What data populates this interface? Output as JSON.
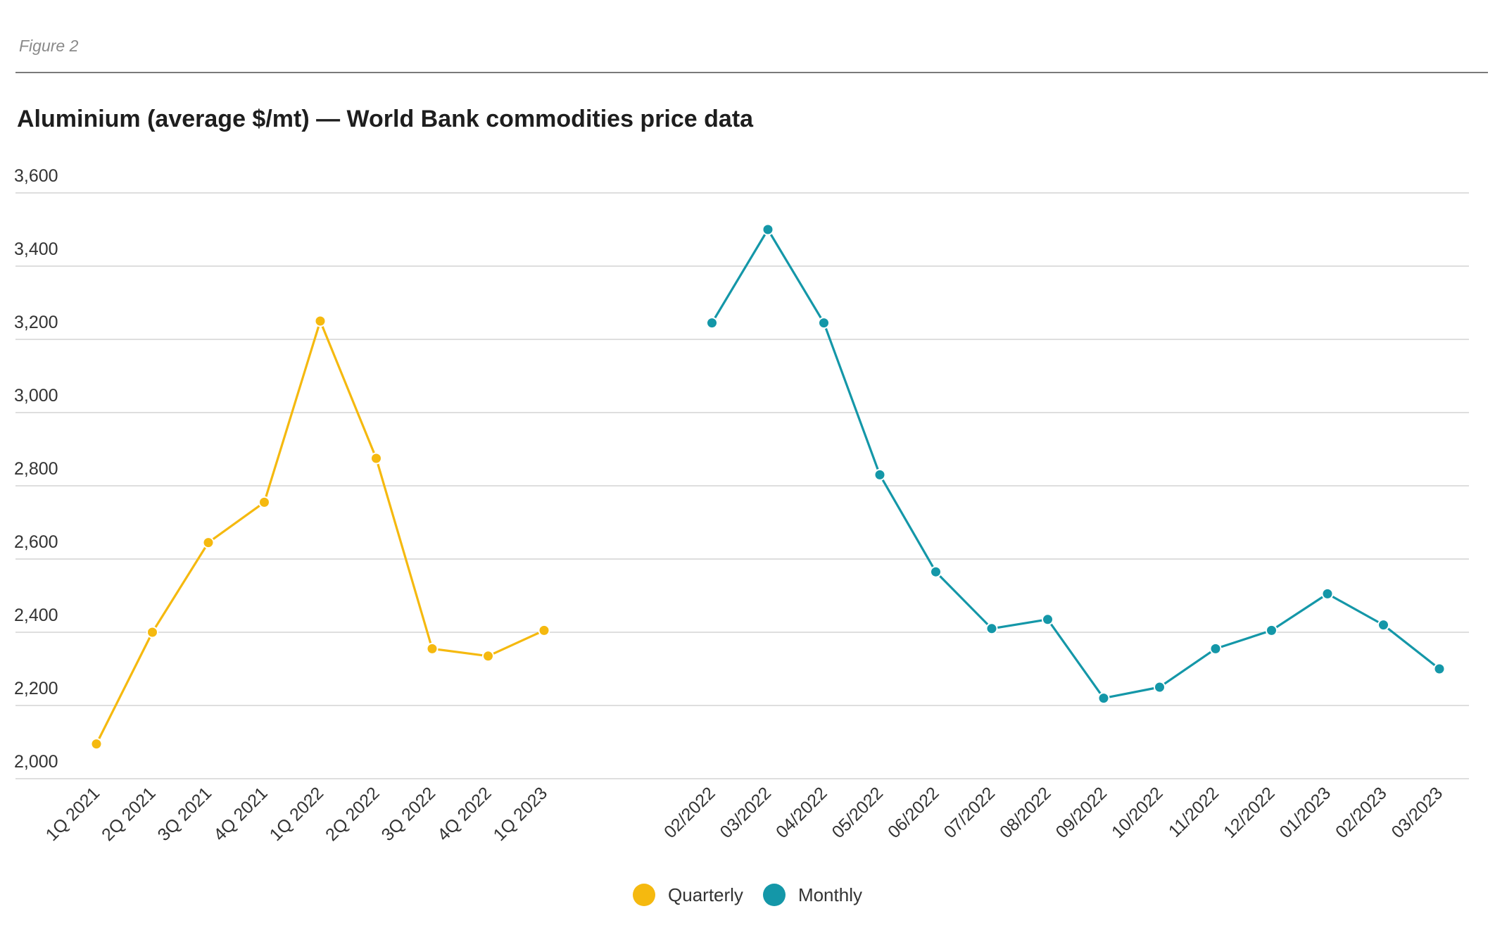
{
  "figure_label": "Figure 2",
  "title": "Aluminium (average $/mt) — World Bank commodities price data",
  "legend": {
    "quarterly_label": "Quarterly",
    "monthly_label": "Monthly"
  },
  "chart_data": {
    "type": "line",
    "title": "Aluminium (average $/mt) — World Bank commodities price data",
    "xlabel": "",
    "ylabel": "",
    "ylim": [
      2000,
      3600
    ],
    "yticks": [
      2000,
      2200,
      2400,
      2600,
      2800,
      3000,
      3200,
      3400,
      3600
    ],
    "ytick_labels": [
      "2,000",
      "2,200",
      "2,400",
      "2,600",
      "2,800",
      "3,000",
      "3,200",
      "3,400",
      "3,600"
    ],
    "grid": true,
    "legend_position": "bottom-center",
    "categories": [
      "1Q 2021",
      "2Q 2021",
      "3Q 2021",
      "4Q 2021",
      "1Q 2022",
      "2Q 2022",
      "3Q 2022",
      "4Q 2022",
      "1Q 2023",
      "02/2022",
      "03/2022",
      "04/2022",
      "05/2022",
      "06/2022",
      "07/2022",
      "08/2022",
      "09/2022",
      "10/2022",
      "11/2022",
      "12/2022",
      "01/2023",
      "02/2023",
      "03/2023"
    ],
    "series": [
      {
        "name": "Quarterly",
        "color": "#f5b90f",
        "x": [
          "1Q 2021",
          "2Q 2021",
          "3Q 2021",
          "4Q 2021",
          "1Q 2022",
          "2Q 2022",
          "3Q 2022",
          "4Q 2022",
          "1Q 2023"
        ],
        "values": [
          2095,
          2400,
          2645,
          2755,
          3250,
          2875,
          2355,
          2335,
          2405
        ]
      },
      {
        "name": "Monthly",
        "color": "#1497a8",
        "x": [
          "02/2022",
          "03/2022",
          "04/2022",
          "05/2022",
          "06/2022",
          "07/2022",
          "08/2022",
          "09/2022",
          "10/2022",
          "11/2022",
          "12/2022",
          "01/2023",
          "02/2023",
          "03/2023"
        ],
        "values": [
          3245,
          3500,
          3245,
          2830,
          2565,
          2410,
          2435,
          2220,
          2250,
          2355,
          2405,
          2505,
          2420,
          2300
        ]
      }
    ]
  }
}
